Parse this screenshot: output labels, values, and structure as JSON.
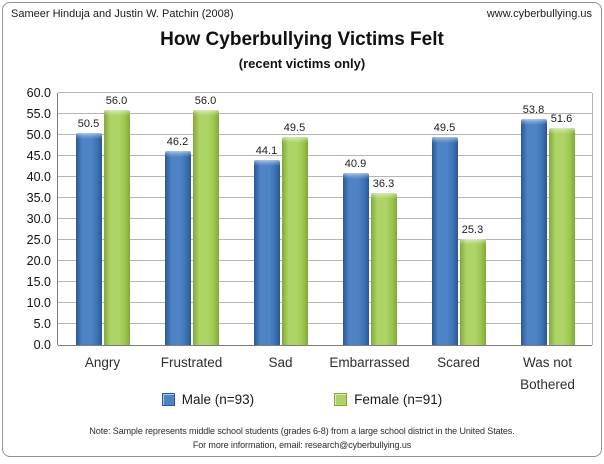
{
  "header": {
    "left": "Sameer Hinduja and Justin W. Patchin (2008)",
    "right": "www.cyberbullying.us"
  },
  "chart_data": {
    "type": "bar",
    "title": "How Cyberbullying Victims Felt",
    "subtitle": "(recent victims only)",
    "categories": [
      "Angry",
      "Frustrated",
      "Sad",
      "Embarrassed",
      "Scared",
      "Was not Bothered"
    ],
    "series": [
      {
        "key": "male",
        "name": "Male (n=93)",
        "values": [
          50.5,
          46.2,
          44.1,
          40.9,
          49.5,
          53.8
        ],
        "color": "#3e73b5",
        "color_light": "#4e83c6",
        "color_edge": "#2a5795"
      },
      {
        "key": "female",
        "name": "Female (n=91)",
        "values": [
          56.0,
          56.0,
          49.5,
          36.3,
          25.3,
          51.6
        ],
        "color": "#9cc74f",
        "color_light": "#aed366",
        "color_edge": "#82a838"
      }
    ],
    "xlabel": "",
    "ylabel": "",
    "ylim": [
      0,
      60
    ],
    "ytick_step": 5,
    "ytick_format_decimals": 1,
    "value_labels": true,
    "grid": true,
    "gridline_color": "#b5b5b5",
    "legend_position": "bottom"
  },
  "footer": {
    "line1": "Note: Sample represents middle school students (grades 6-8) from a large school district in the United States.",
    "line2": "For more information, email: research@cyberbullying.us"
  }
}
